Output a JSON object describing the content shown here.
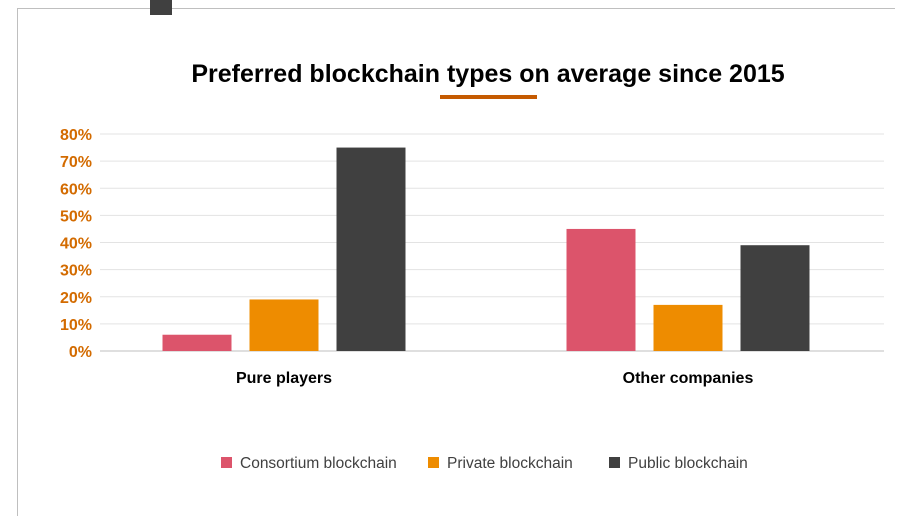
{
  "chart_data": {
    "type": "bar",
    "title": "Preferred blockchain types on average since 2015",
    "categories": [
      "Pure players",
      "Other companies"
    ],
    "series": [
      {
        "name": "Consortium blockchain",
        "values": [
          6,
          45
        ],
        "color": "#dc546b"
      },
      {
        "name": "Private blockchain",
        "values": [
          19,
          17
        ],
        "color": "#ee8c00"
      },
      {
        "name": "Public blockchain",
        "values": [
          75,
          39
        ],
        "color": "#404040"
      }
    ],
    "ylim": [
      0,
      80
    ],
    "yticks": [
      "0%",
      "10%",
      "20%",
      "30%",
      "40%",
      "50%",
      "60%",
      "70%",
      "80%"
    ],
    "ytick_color": "#d36b00",
    "title_underline_color": "#c55a00",
    "grid": true,
    "legend_position": "bottom"
  }
}
